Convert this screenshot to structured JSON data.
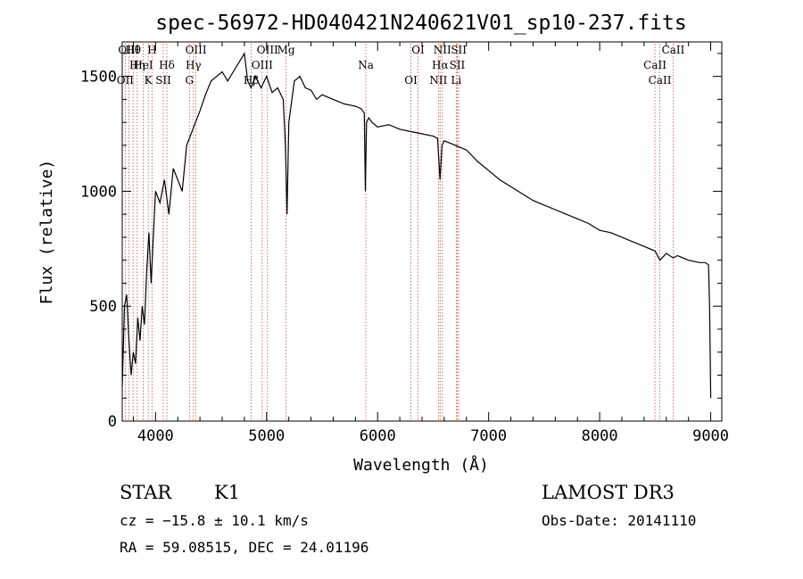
{
  "chart_data": {
    "type": "line",
    "title": "spec-56972-HD040421N240621V01_sp10-237.fits",
    "xlabel": "Wavelength (Å)",
    "ylabel": "Flux (relative)",
    "xlim": [
      3700,
      9100
    ],
    "ylim": [
      0,
      1650
    ],
    "xticks": [
      4000,
      5000,
      6000,
      7000,
      8000,
      9000
    ],
    "yticks": [
      0,
      500,
      1000,
      1500
    ],
    "series": [
      {
        "name": "spectrum",
        "x": [
          3700,
          3720,
          3740,
          3760,
          3780,
          3800,
          3820,
          3840,
          3860,
          3880,
          3900,
          3920,
          3940,
          3960,
          3980,
          4000,
          4040,
          4080,
          4120,
          4160,
          4200,
          4240,
          4280,
          4320,
          4360,
          4400,
          4450,
          4500,
          4550,
          4600,
          4650,
          4700,
          4750,
          4800,
          4830,
          4860,
          4900,
          4950,
          5000,
          5050,
          5100,
          5150,
          5170,
          5184,
          5200,
          5250,
          5300,
          5350,
          5400,
          5450,
          5500,
          5600,
          5700,
          5800,
          5850,
          5880,
          5890,
          5900,
          5920,
          5950,
          6000,
          6100,
          6200,
          6300,
          6400,
          6500,
          6540,
          6562,
          6580,
          6600,
          6650,
          6700,
          6800,
          6900,
          7000,
          7100,
          7200,
          7300,
          7400,
          7500,
          7600,
          7700,
          7800,
          7900,
          8000,
          8100,
          8200,
          8300,
          8400,
          8500,
          8542,
          8600,
          8662,
          8700,
          8800,
          8900,
          8950,
          8980,
          8990,
          9000
        ],
        "values": [
          150,
          500,
          550,
          350,
          200,
          300,
          250,
          450,
          350,
          500,
          420,
          650,
          820,
          600,
          800,
          1000,
          950,
          1050,
          900,
          1100,
          1050,
          1000,
          1200,
          1250,
          1300,
          1350,
          1420,
          1480,
          1500,
          1520,
          1480,
          1520,
          1560,
          1600,
          1480,
          1450,
          1500,
          1450,
          1500,
          1430,
          1450,
          1400,
          1200,
          900,
          1300,
          1480,
          1500,
          1450,
          1440,
          1400,
          1420,
          1400,
          1380,
          1370,
          1360,
          1340,
          1000,
          1300,
          1320,
          1300,
          1280,
          1290,
          1270,
          1260,
          1250,
          1240,
          1230,
          1050,
          1200,
          1220,
          1210,
          1200,
          1180,
          1130,
          1090,
          1050,
          1020,
          990,
          960,
          940,
          920,
          900,
          880,
          860,
          830,
          820,
          800,
          780,
          760,
          740,
          700,
          730,
          710,
          720,
          700,
          690,
          690,
          680,
          500,
          100
        ]
      }
    ],
    "line_markers": [
      {
        "label": "Hθ",
        "wavelength": 3798
      },
      {
        "label": "Hη",
        "wavelength": 3835
      },
      {
        "label": "K",
        "wavelength": 3934
      },
      {
        "label": "H",
        "wavelength": 3968
      },
      {
        "label": "Hδ",
        "wavelength": 4102
      },
      {
        "label": "OII",
        "wavelength": 3727
      },
      {
        "label": "OIII",
        "wavelength": 3760
      },
      {
        "label": "HeI",
        "wavelength": 3889
      },
      {
        "label": "SII",
        "wavelength": 4070
      },
      {
        "label": "OIII",
        "wavelength": 4364
      },
      {
        "label": "Hγ",
        "wavelength": 4341
      },
      {
        "label": "G",
        "wavelength": 4305
      },
      {
        "label": "OIII",
        "wavelength": 5008
      },
      {
        "label": "OIII",
        "wavelength": 4960
      },
      {
        "label": "Hβ",
        "wavelength": 4862
      },
      {
        "label": "Mg",
        "wavelength": 5175
      },
      {
        "label": "Na",
        "wavelength": 5894
      },
      {
        "label": "OI",
        "wavelength": 6300
      },
      {
        "label": "OI",
        "wavelength": 6364
      },
      {
        "label": "Hα",
        "wavelength": 6563
      },
      {
        "label": "NII",
        "wavelength": 6548
      },
      {
        "label": "NII",
        "wavelength": 6583
      },
      {
        "label": "SII",
        "wavelength": 6717
      },
      {
        "label": "Li",
        "wavelength": 6708
      },
      {
        "label": "SII",
        "wavelength": 6731
      },
      {
        "label": "CaII",
        "wavelength": 8498
      },
      {
        "label": "CaII",
        "wavelength": 8542
      },
      {
        "label": "CaII",
        "wavelength": 8662
      }
    ]
  },
  "info": {
    "object_class": "STAR",
    "subclass": "K1",
    "survey": "LAMOST DR3",
    "redshift": "cz = −15.8 ± 10.1 km/s",
    "obs_date": "Obs-Date: 20141110",
    "coords": "RA =  59.08515, DEC =  24.01196"
  },
  "colors": {
    "line_marker": "#c8503c",
    "spectrum": "#000000"
  }
}
